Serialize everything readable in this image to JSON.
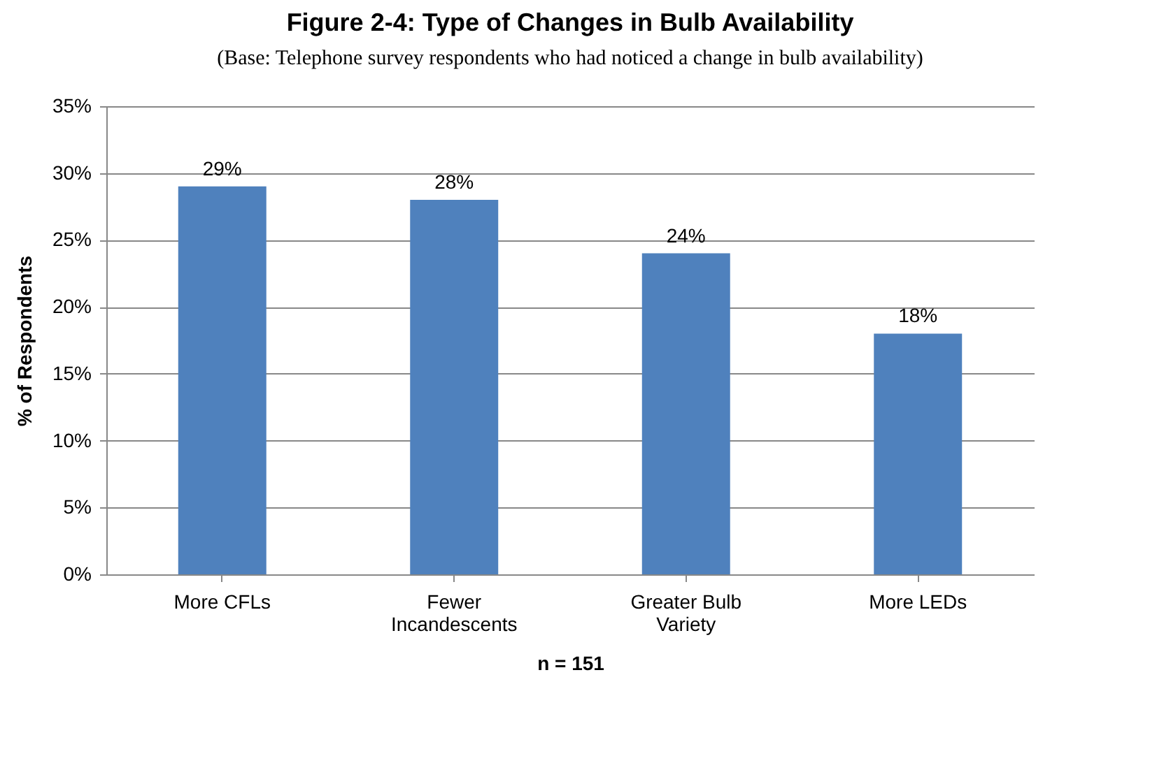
{
  "chart_data": {
    "type": "bar",
    "title": "Figure 2-4: Type of Changes in Bulb Availability",
    "subtitle": "(Base: Telephone survey respondents who had noticed a change in bulb availability)",
    "xlabel": "n = 151",
    "ylabel": "% of Respondents",
    "categories": [
      "More CFLs",
      "Fewer Incandescents",
      "Greater Bulb Variety",
      "More LEDs"
    ],
    "values": [
      29,
      28,
      24,
      18
    ],
    "value_labels": [
      "29%",
      "28%",
      "24%",
      "18%"
    ],
    "color": "#4f81bd",
    "ylim": [
      0,
      35
    ],
    "yticks": [
      {
        "value": 0,
        "label": "0%"
      },
      {
        "value": 5,
        "label": "5%"
      },
      {
        "value": 10,
        "label": "10%"
      },
      {
        "value": 15,
        "label": "15%"
      },
      {
        "value": 20,
        "label": "20%"
      },
      {
        "value": 25,
        "label": "25%"
      },
      {
        "value": 30,
        "label": "30%"
      },
      {
        "value": 35,
        "label": "35%"
      }
    ],
    "grid": "y"
  }
}
